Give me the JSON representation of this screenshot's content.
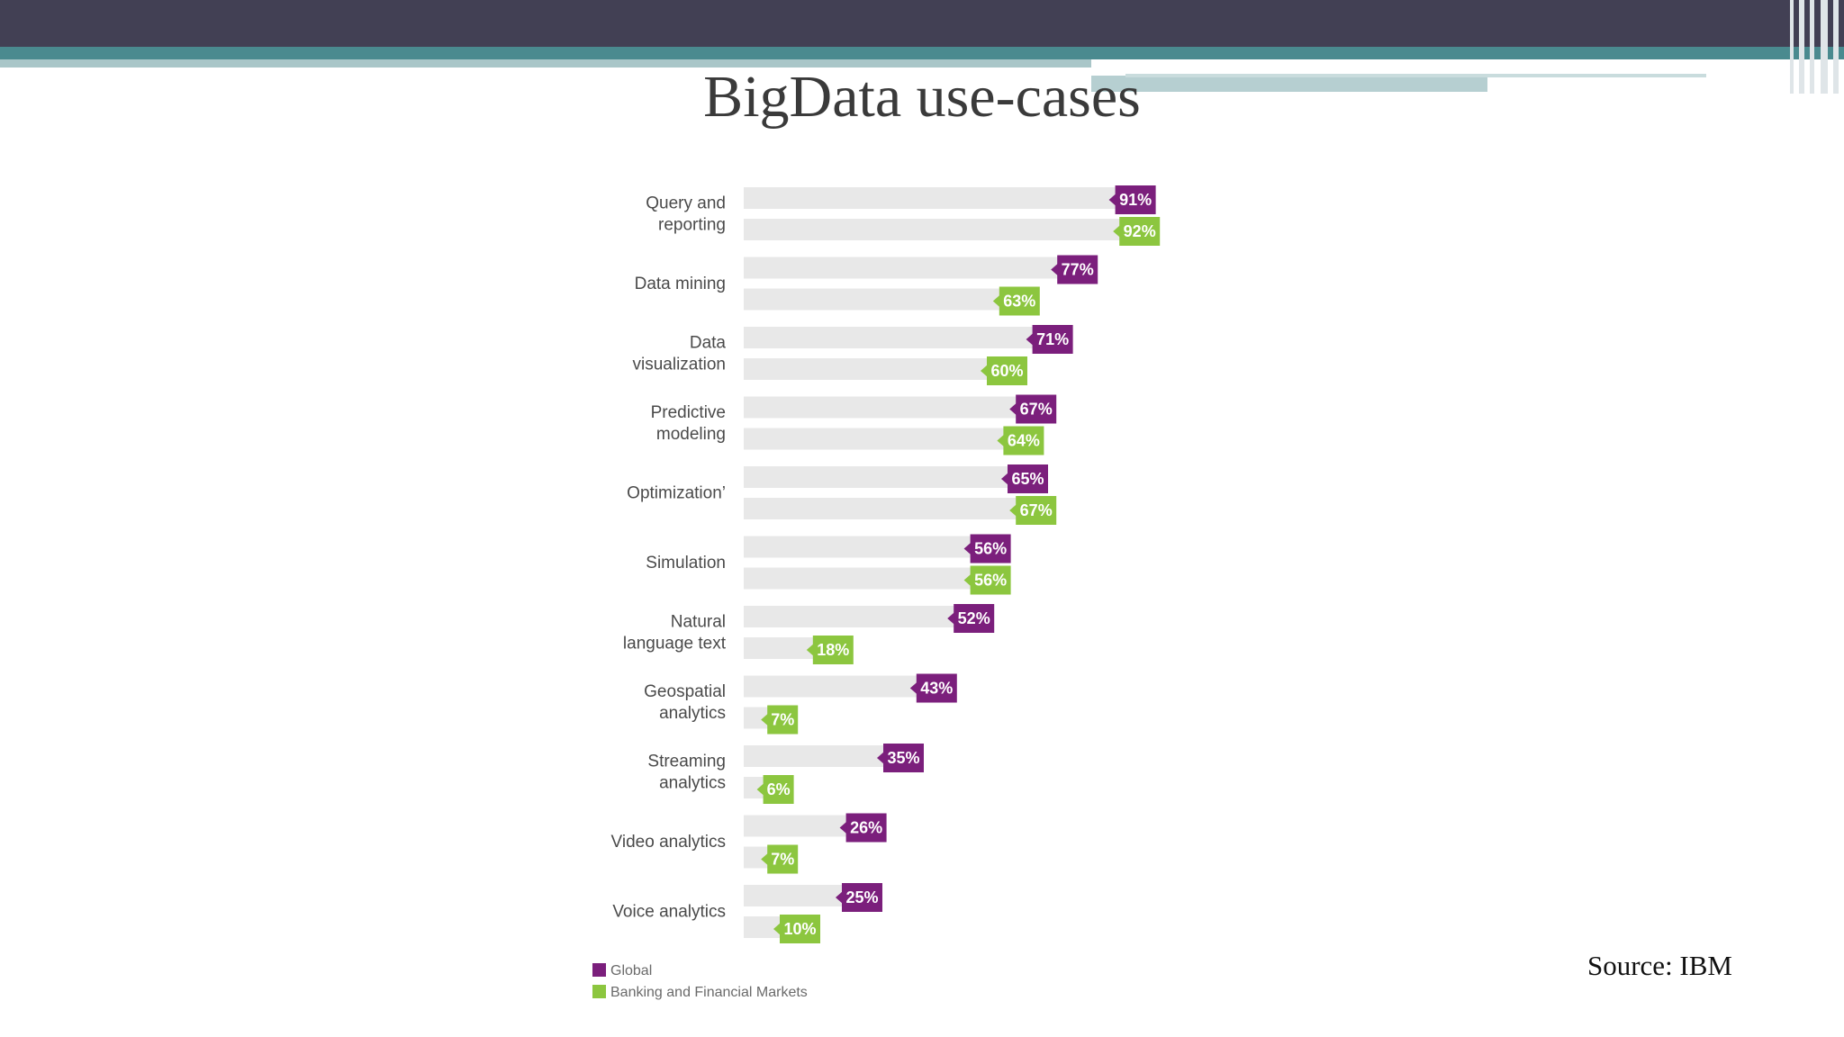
{
  "slide": {
    "title": "BigData use-cases",
    "source": "Source: IBM"
  },
  "colors": {
    "header_dark": "#424054",
    "header_teal": "#4a8a8f",
    "global": "#7b1f7c",
    "banking": "#8cc63f",
    "track": "#e8e8e8"
  },
  "chart_data": {
    "type": "bar",
    "orientation": "horizontal",
    "categories": [
      [
        "Query and",
        "reporting"
      ],
      [
        "Data mining"
      ],
      [
        "Data",
        "visualization"
      ],
      [
        "Predictive",
        "modeling"
      ],
      [
        "Optimization’"
      ],
      [
        "Simulation"
      ],
      [
        "Natural",
        "language text"
      ],
      [
        "Geospatial",
        "analytics"
      ],
      [
        "Streaming",
        "analytics"
      ],
      [
        "Video analytics"
      ],
      [
        "Voice analytics"
      ]
    ],
    "series": [
      {
        "name": "Global",
        "values": [
          91,
          77,
          71,
          67,
          65,
          56,
          52,
          43,
          35,
          26,
          25
        ]
      },
      {
        "name": "Banking and Financial Markets",
        "values": [
          92,
          63,
          60,
          64,
          67,
          56,
          18,
          7,
          6,
          7,
          10
        ]
      }
    ],
    "value_labels": [
      [
        "91%",
        "77%",
        "71%",
        "67%",
        "65%",
        "56%",
        "52%",
        "43%",
        "35%",
        "26%",
        "25%"
      ],
      [
        "92%",
        "63%",
        "60%",
        "64%",
        "67%",
        "56%",
        "18%",
        "7%",
        "6%",
        "7%",
        "10%"
      ]
    ],
    "xlim": [
      0,
      100
    ],
    "legend": "bottom-left"
  }
}
